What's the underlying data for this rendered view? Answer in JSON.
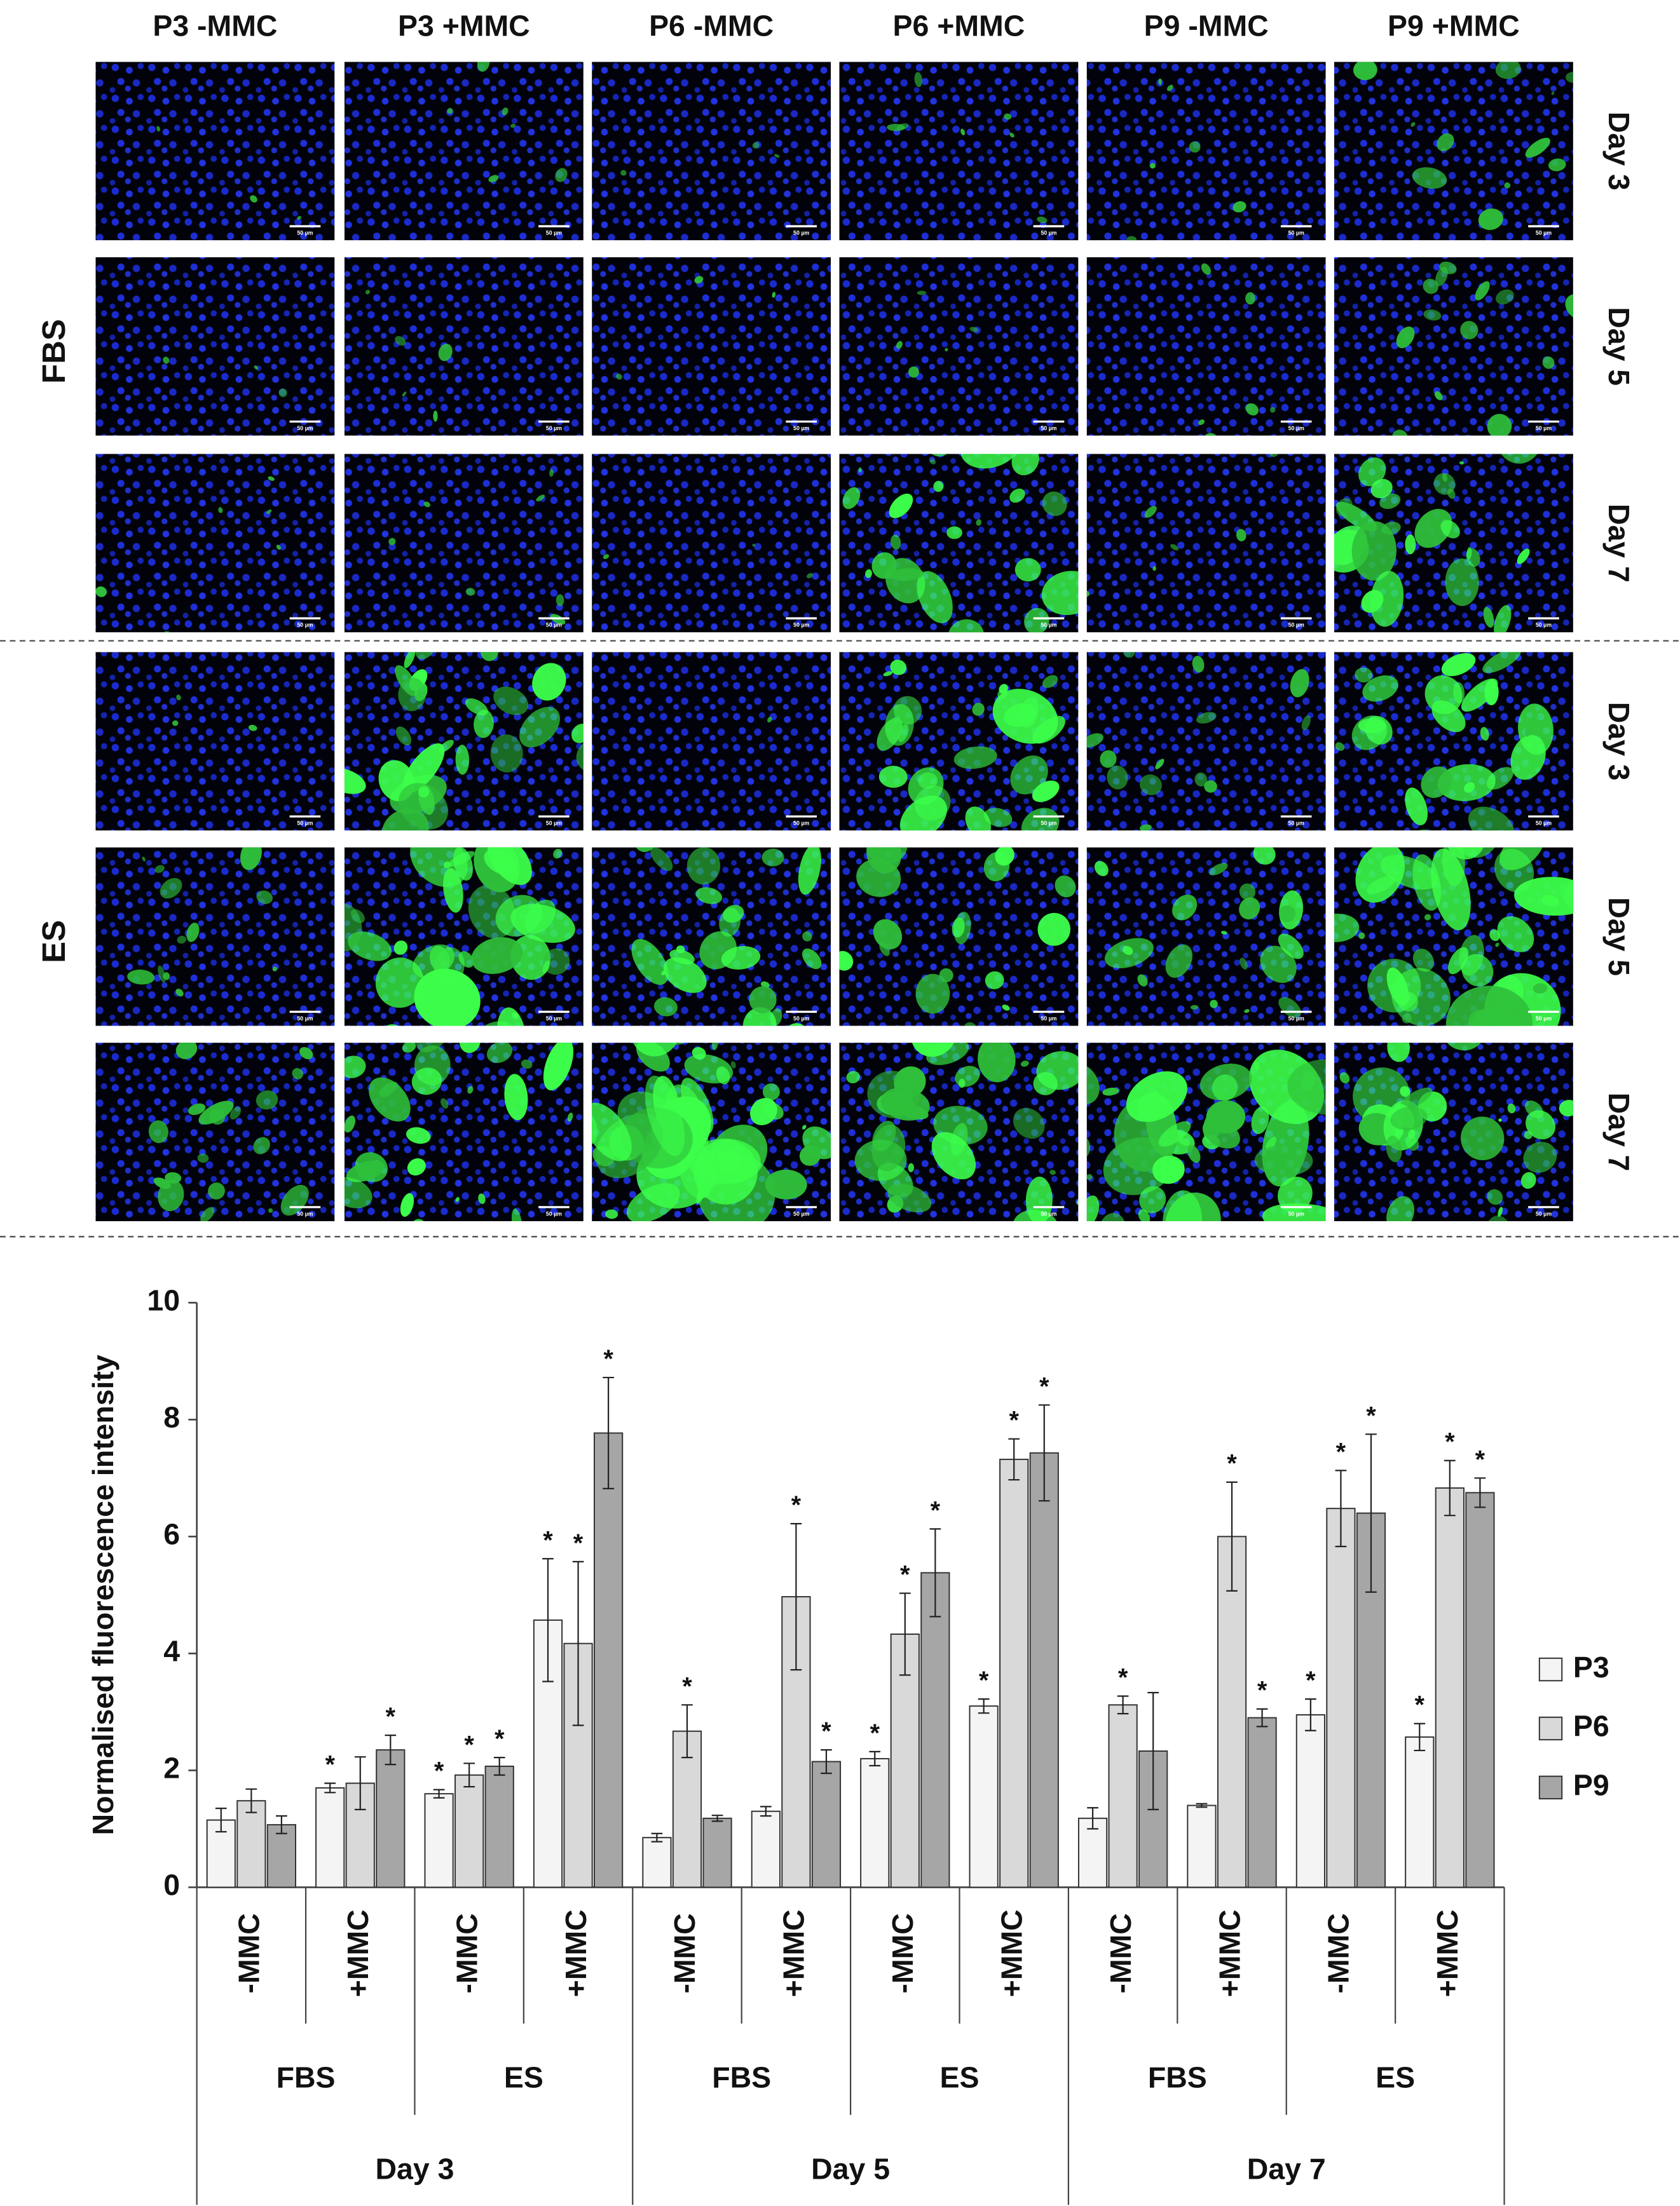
{
  "images": {
    "columns": [
      "P3 -MMC",
      "P3 +MMC",
      "P6 -MMC",
      "P6 +MMC",
      "P9 -MMC",
      "P9 +MMC"
    ],
    "rows": [
      "Day 3",
      "Day 5",
      "Day 7",
      "Day 3",
      "Day 5",
      "Day 7"
    ],
    "groups": [
      "FBS",
      "ES"
    ],
    "scale_bar": "50 µm"
  },
  "chart_data": {
    "type": "bar",
    "y_label": "Normalised fluorescence intensity",
    "categories": [
      "-MMC",
      "+MMC",
      "-MMC",
      "+MMC",
      "-MMC",
      "+MMC",
      "-MMC",
      "+MMC",
      "-MMC",
      "+MMC",
      "-MMC",
      "+MMC"
    ],
    "category_groups": [
      "FBS",
      "ES",
      "FBS",
      "ES",
      "FBS",
      "ES"
    ],
    "category_supergroups": [
      "Day 3",
      "Day 5",
      "Day 7"
    ],
    "series": [
      {
        "name": "P3",
        "color": "#f4f4f4",
        "values": [
          1.15,
          1.7,
          1.6,
          4.57,
          0.85,
          1.3,
          2.2,
          3.1,
          1.18,
          1.4,
          2.95,
          2.57
        ],
        "errors": [
          0.2,
          0.08,
          0.07,
          1.05,
          0.07,
          0.08,
          0.12,
          0.12,
          0.18,
          0.03,
          0.27,
          0.23
        ],
        "labels": [
          null,
          "*",
          "*",
          "*",
          null,
          null,
          "*",
          "*",
          null,
          null,
          "*",
          "*"
        ]
      },
      {
        "name": "P6",
        "color": "#d9d9d9",
        "values": [
          1.48,
          1.78,
          1.92,
          4.17,
          2.67,
          4.97,
          4.33,
          7.32,
          3.12,
          6.0,
          6.48,
          6.83
        ],
        "errors": [
          0.2,
          0.45,
          0.2,
          1.4,
          0.45,
          1.25,
          0.7,
          0.35,
          0.15,
          0.93,
          0.65,
          0.47
        ],
        "labels": [
          null,
          null,
          "*",
          "*",
          "*",
          "*",
          "*",
          "*",
          "*",
          "*",
          "*",
          "*"
        ]
      },
      {
        "name": "P9",
        "color": "#a6a6a6",
        "values": [
          1.07,
          2.35,
          2.07,
          7.77,
          1.18,
          2.15,
          5.38,
          7.43,
          2.33,
          2.9,
          6.4,
          6.75
        ],
        "errors": [
          0.15,
          0.25,
          0.15,
          0.95,
          0.05,
          0.2,
          0.75,
          0.82,
          1.0,
          0.15,
          1.35,
          0.25
        ],
        "labels": [
          null,
          "*",
          "*",
          "*",
          null,
          "*",
          "*",
          "*",
          null,
          "*",
          "*",
          "*"
        ]
      }
    ],
    "ylim": [
      0,
      10
    ],
    "yticks": [
      0,
      2,
      4,
      6,
      8,
      10
    ],
    "grid": false,
    "legend": "right"
  }
}
